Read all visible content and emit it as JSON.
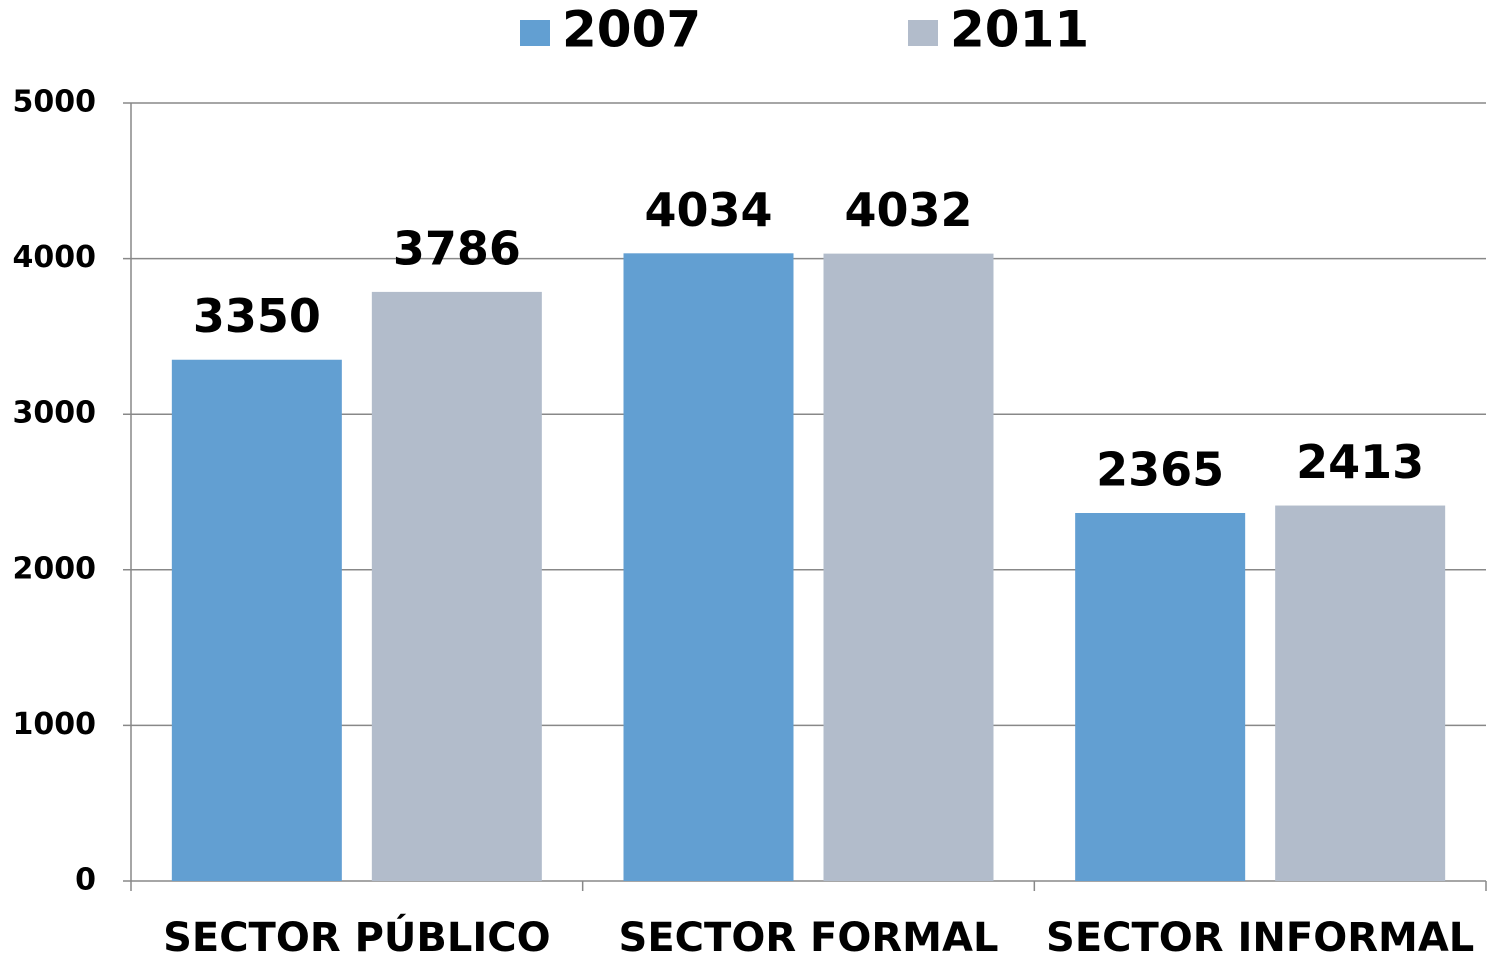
{
  "chart_data": {
    "type": "bar",
    "categories": [
      "SECTOR PÚBLICO",
      "SECTOR FORMAL",
      "SECTOR INFORMAL"
    ],
    "series": [
      {
        "name": "2007",
        "color": "#629fd2",
        "values": [
          3350,
          4034,
          2365
        ]
      },
      {
        "name": "2011",
        "color": "#b2bccb",
        "values": [
          3786,
          4032,
          2413
        ]
      }
    ],
    "ylim": [
      0,
      5000
    ],
    "yticks": [
      0,
      1000,
      2000,
      3000,
      4000,
      5000
    ],
    "grid": true,
    "legend": "top"
  }
}
